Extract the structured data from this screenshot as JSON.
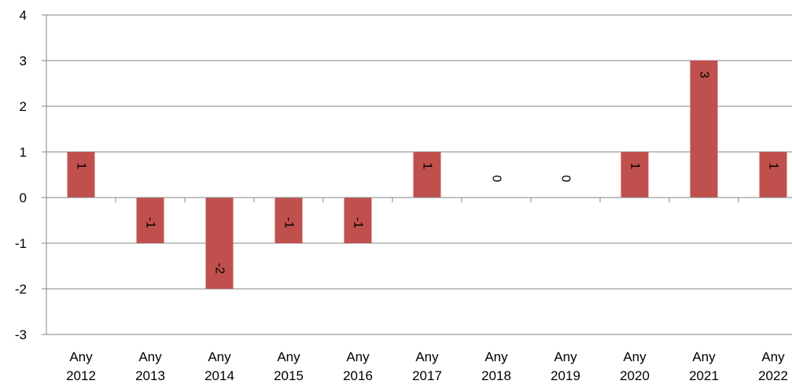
{
  "chart_data": {
    "type": "bar",
    "title": "",
    "xlabel": "",
    "ylabel": "",
    "categories": [
      [
        "Any",
        "2012"
      ],
      [
        "Any",
        "2013"
      ],
      [
        "Any",
        "2014"
      ],
      [
        "Any",
        "2015"
      ],
      [
        "Any",
        "2016"
      ],
      [
        "Any",
        "2017"
      ],
      [
        "Any",
        "2018"
      ],
      [
        "Any",
        "2019"
      ],
      [
        "Any",
        "2020"
      ],
      [
        "Any",
        "2021"
      ],
      [
        "Any",
        "2022"
      ]
    ],
    "values": [
      1,
      -1,
      -2,
      -1,
      -1,
      1,
      0,
      0,
      1,
      3,
      1
    ],
    "data_labels": [
      "1",
      "-1",
      "-2",
      "-1",
      "-1",
      "1",
      "0",
      "0",
      "1",
      "3",
      "1"
    ],
    "ylim": [
      -3,
      4
    ],
    "yticks": [
      -3,
      -2,
      -1,
      0,
      1,
      2,
      3,
      4
    ],
    "ytick_labels": [
      "-3",
      "-2",
      "-1",
      "0",
      "1",
      "2",
      "3",
      "4"
    ],
    "grid": true,
    "legend": "none",
    "bar_color": "#C0504D",
    "grid_color": "#868686",
    "data_label_rotation": "vertical"
  }
}
